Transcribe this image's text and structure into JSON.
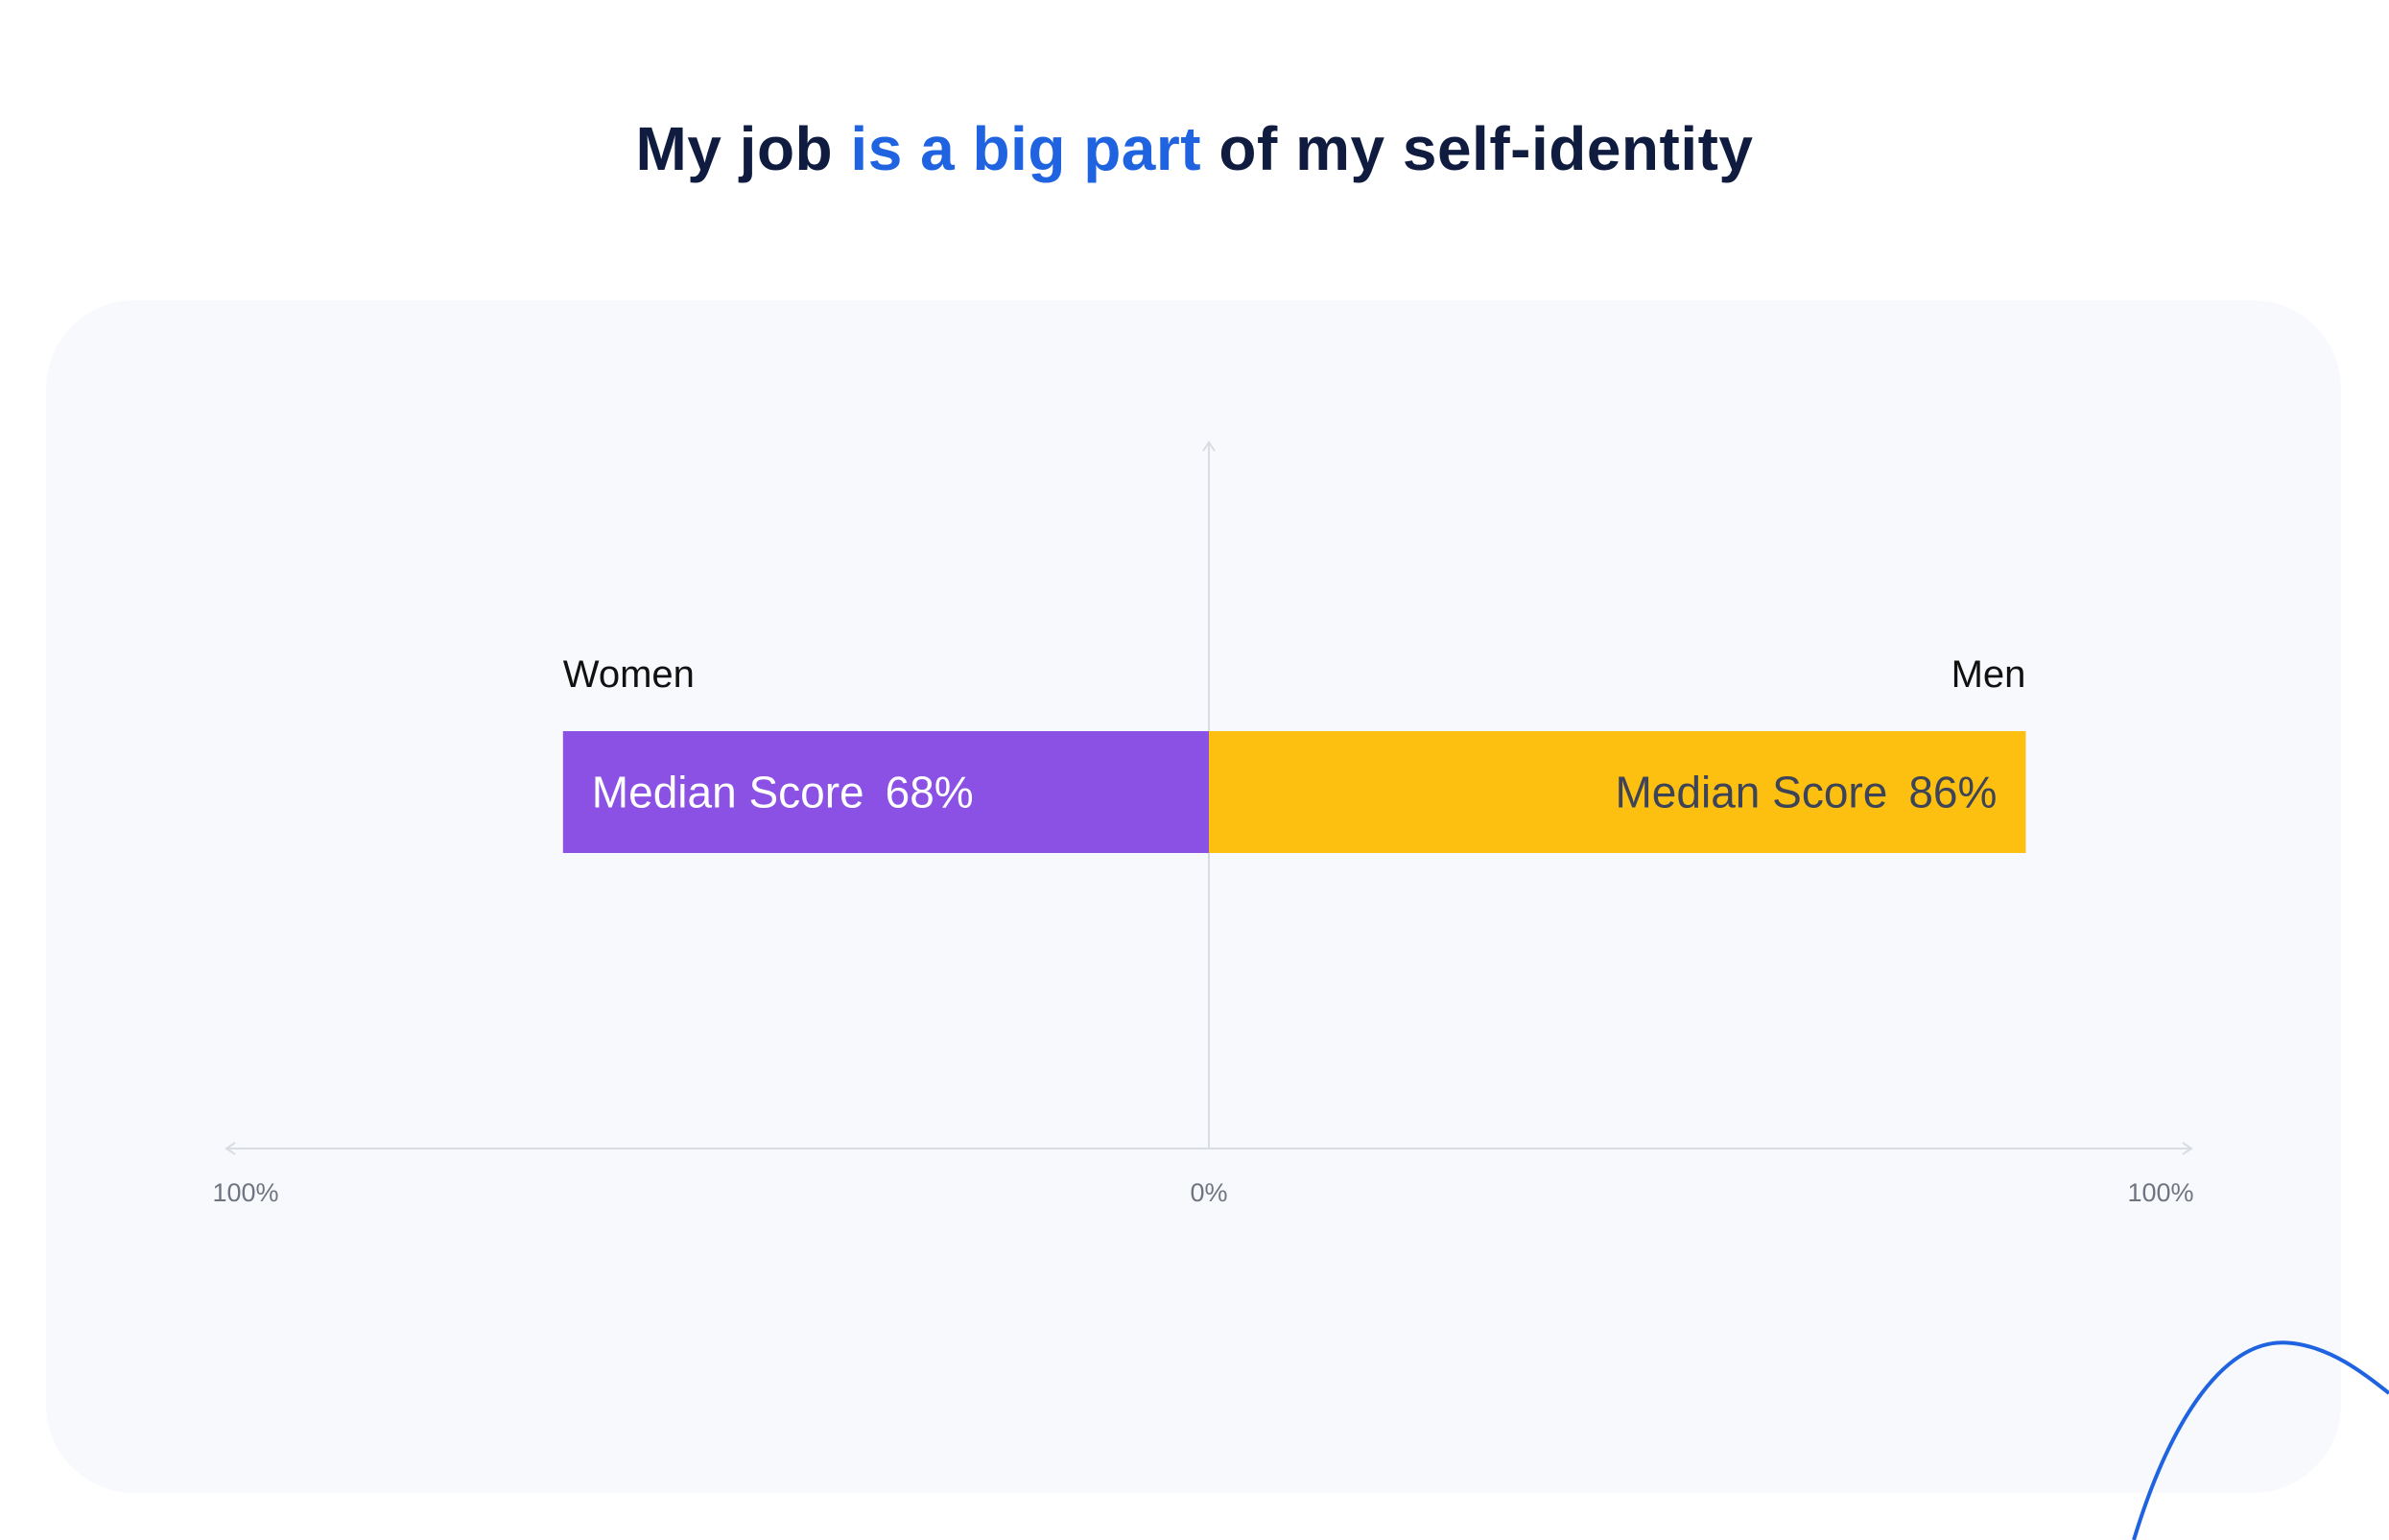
{
  "title": {
    "part1": "My job ",
    "accent": "is a big part",
    "part2": " of my self-identity"
  },
  "chart_data": {
    "type": "bar",
    "orientation": "horizontal-diverging",
    "xlim": [
      -100,
      100
    ],
    "x_tick_labels": [
      "100%",
      "0%",
      "100%"
    ],
    "grid": false,
    "series": [
      {
        "name": "Women",
        "value": 68,
        "bar_label": "Median Score",
        "value_label": "68%",
        "direction": "left",
        "color": "#8b50e4",
        "text_color": "#ffffff"
      },
      {
        "name": "Men",
        "value": 86,
        "bar_label": "Median Score",
        "value_label": "86%",
        "direction": "right",
        "color": "#fdc010",
        "text_color": "#3d4457"
      }
    ]
  },
  "colors": {
    "title": "#0f1c3f",
    "accent": "#1f63e0",
    "panel": "#f8f9fd",
    "axis": "#d9dce3",
    "tick_text": "#6f7580",
    "series_label": "#111111",
    "decoration": "#1f63e0"
  }
}
